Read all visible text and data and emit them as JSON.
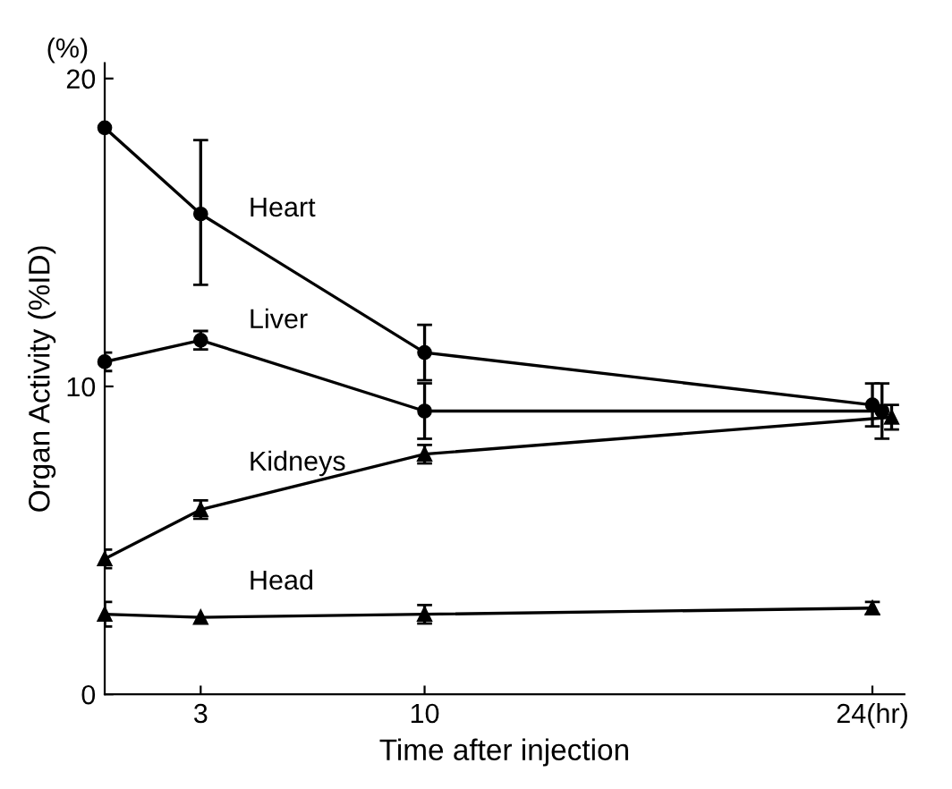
{
  "chart_data": {
    "type": "line",
    "xlabel": "Time after injection",
    "ylabel": "Organ Activity (%ID)",
    "annotations": [
      "(%)"
    ],
    "xlim": [
      0,
      25
    ],
    "xticks": [
      3,
      10,
      {
        "value": 24,
        "label": "24(hr)"
      }
    ],
    "ylim": [
      0,
      20.5
    ],
    "yticks": [
      0,
      10,
      20
    ],
    "grid": false,
    "legend": false,
    "series": [
      {
        "name": "Heart",
        "color": "#000000",
        "marker": "circle",
        "x": [
          0,
          3,
          10,
          24
        ],
        "values": [
          18.4,
          15.6,
          11.1,
          9.4
        ],
        "errors": [
          null,
          [
            13.3,
            18.0
          ],
          [
            10.2,
            12.0
          ],
          0.7
        ]
      },
      {
        "name": "Liver",
        "color": "#000000",
        "marker": "circle",
        "x": [
          0,
          3,
          10,
          24.3
        ],
        "values": [
          10.8,
          11.5,
          9.2,
          9.2
        ],
        "errors": [
          0.3,
          0.3,
          0.9,
          0.9
        ]
      },
      {
        "name": "Kidneys",
        "color": "#000000",
        "marker": "triangle",
        "x": [
          0,
          3,
          10,
          24.6
        ],
        "values": [
          4.4,
          6.0,
          7.8,
          9.0
        ],
        "errors": [
          0.3,
          0.3,
          0.3,
          0.4
        ]
      },
      {
        "name": "Head",
        "color": "#000000",
        "marker": "triangle",
        "x": [
          0,
          3,
          10,
          24
        ],
        "values": [
          2.6,
          2.5,
          2.6,
          2.8
        ],
        "errors": [
          0.4,
          null,
          0.3,
          0.2
        ]
      }
    ]
  }
}
